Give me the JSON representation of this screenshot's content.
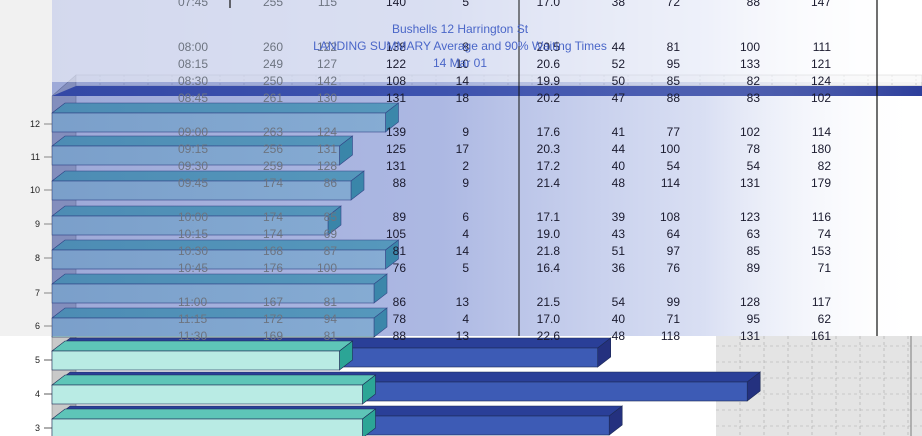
{
  "titles": {
    "line1": "Bushells  12 Harrington St",
    "line2": "LANDING SUMMARY  Average and 90% Waiting Times",
    "line3": "14 Mar 01"
  },
  "colors": {
    "bar_front_light": "#b9ebe4",
    "bar_front_teal": "#8ed6cf",
    "bar_side_teal": "#2ca596",
    "bar_top_teal": "#5ec5b8",
    "bar_front_blue": "#3d5bb5",
    "bar_side_blue": "#24317f",
    "bar_top_blue": "#2a3f98",
    "overlay_blue": "#3d55b6",
    "wall_grey": "#d8d8d8"
  },
  "table": {
    "rows": [
      {
        "time": "07:45",
        "c1": "255",
        "c2": "115",
        "c3": "140",
        "c4": "5",
        "c5": "17.0",
        "c6": "38",
        "c7": "72",
        "c8": "88",
        "c9": "147"
      },
      {
        "time": "08:00",
        "c1": "260",
        "c2": "122",
        "c3": "138",
        "c4": "8",
        "c5": "20.5",
        "c6": "44",
        "c7": "81",
        "c8": "100",
        "c9": "111"
      },
      {
        "time": "08:15",
        "c1": "249",
        "c2": "127",
        "c3": "122",
        "c4": "10",
        "c5": "20.6",
        "c6": "52",
        "c7": "95",
        "c8": "133",
        "c9": "121"
      },
      {
        "time": "08:30",
        "c1": "250",
        "c2": "142",
        "c3": "108",
        "c4": "14",
        "c5": "19.9",
        "c6": "50",
        "c7": "85",
        "c8": "82",
        "c9": "124"
      },
      {
        "time": "08:45",
        "c1": "261",
        "c2": "130",
        "c3": "131",
        "c4": "18",
        "c5": "20.2",
        "c6": "47",
        "c7": "88",
        "c8": "83",
        "c9": "102"
      },
      {
        "time": "09:00",
        "c1": "263",
        "c2": "124",
        "c3": "139",
        "c4": "9",
        "c5": "17.6",
        "c6": "41",
        "c7": "77",
        "c8": "102",
        "c9": "114"
      },
      {
        "time": "09:15",
        "c1": "256",
        "c2": "131",
        "c3": "125",
        "c4": "17",
        "c5": "20.3",
        "c6": "44",
        "c7": "100",
        "c8": "78",
        "c9": "180"
      },
      {
        "time": "09:30",
        "c1": "259",
        "c2": "128",
        "c3": "131",
        "c4": "2",
        "c5": "17.2",
        "c6": "40",
        "c7": "54",
        "c8": "54",
        "c9": "82"
      },
      {
        "time": "09:45",
        "c1": "174",
        "c2": "86",
        "c3": "88",
        "c4": "9",
        "c5": "21.4",
        "c6": "48",
        "c7": "114",
        "c8": "131",
        "c9": "179"
      },
      {
        "time": "10:00",
        "c1": "174",
        "c2": "85",
        "c3": "89",
        "c4": "6",
        "c5": "17.1",
        "c6": "39",
        "c7": "108",
        "c8": "123",
        "c9": "116"
      },
      {
        "time": "10:15",
        "c1": "174",
        "c2": "69",
        "c3": "105",
        "c4": "4",
        "c5": "19.0",
        "c6": "43",
        "c7": "64",
        "c8": "63",
        "c9": "74"
      },
      {
        "time": "10:30",
        "c1": "168",
        "c2": "87",
        "c3": "81",
        "c4": "14",
        "c5": "21.8",
        "c6": "51",
        "c7": "97",
        "c8": "85",
        "c9": "153"
      },
      {
        "time": "10:45",
        "c1": "176",
        "c2": "100",
        "c3": "76",
        "c4": "5",
        "c5": "16.4",
        "c6": "36",
        "c7": "76",
        "c8": "89",
        "c9": "71"
      },
      {
        "time": "11:00",
        "c1": "167",
        "c2": "81",
        "c3": "86",
        "c4": "13",
        "c5": "21.5",
        "c6": "54",
        "c7": "99",
        "c8": "128",
        "c9": "117"
      },
      {
        "time": "11:15",
        "c1": "172",
        "c2": "94",
        "c3": "78",
        "c4": "4",
        "c5": "17.0",
        "c6": "40",
        "c7": "71",
        "c8": "95",
        "c9": "62"
      },
      {
        "time": "11:30",
        "c1": "169",
        "c2": "81",
        "c3": "88",
        "c4": "13",
        "c5": "22.6",
        "c6": "48",
        "c7": "118",
        "c8": "131",
        "c9": "161"
      }
    ]
  },
  "chart_data": {
    "type": "bar",
    "orientation": "horizontal",
    "title": "Bushells  12 Harrington St",
    "subtitle": "LANDING SUMMARY  Average and 90% Waiting Times",
    "date": "14 Mar 01",
    "categories": [
      "3",
      "4",
      "5",
      "6",
      "7",
      "8",
      "9",
      "10",
      "11",
      "12"
    ],
    "series": [
      {
        "values": [
          27,
          27,
          25,
          28,
          28,
          29,
          24,
          26,
          25,
          29
        ]
      },
      {
        "values": [
          48,
          60,
          47,
          0,
          0,
          0,
          0,
          0,
          0,
          0
        ]
      }
    ],
    "grid": true
  }
}
